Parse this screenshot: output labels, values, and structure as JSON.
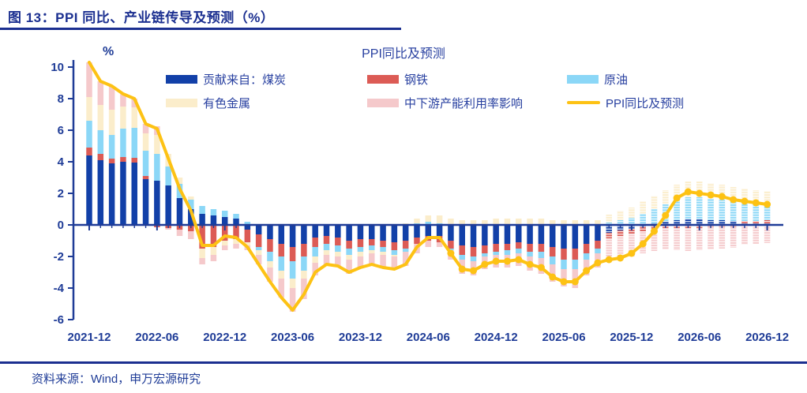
{
  "header": {
    "title": "图 13：PPI 同比、产业链传导及预测（%）"
  },
  "chart": {
    "title": "PPI同比及预测",
    "unit_label": "%"
  },
  "footer": {
    "source": "资料来源：Wind，申万宏源研究"
  },
  "colors": {
    "axis_text": "#1F3C97",
    "title_text": "#1B2F90",
    "divider": "#1B2F90",
    "line": "#FDC214",
    "coal": "#1240A8",
    "steel": "#DC5B55",
    "oil": "#8BD7F7",
    "nonferrous": "#FBEDCB",
    "capacity": "#F5C9CB"
  },
  "legend": {
    "items": [
      {
        "label": "贡献来自：煤炭",
        "color": "#1240A8",
        "kind": "bar"
      },
      {
        "label": "钢铁",
        "color": "#DC5B55",
        "kind": "bar"
      },
      {
        "label": "原油",
        "color": "#8BD7F7",
        "kind": "bar"
      },
      {
        "label": "有色金属",
        "color": "#FBEDCB",
        "kind": "bar"
      },
      {
        "label": "中下游产能利用率影响",
        "color": "#F5C9CB",
        "kind": "bar"
      },
      {
        "label": "PPI同比及预测",
        "color": "#FDC214",
        "kind": "line"
      }
    ]
  },
  "chart_data": {
    "type": "bar",
    "subtype": "stacked-bar-with-line",
    "title": "PPI同比及预测",
    "xlabel": "",
    "ylabel": "%",
    "ylim": [
      -6,
      10
    ],
    "yticks": [
      10,
      8,
      6,
      4,
      2,
      0,
      -2,
      -4,
      -6
    ],
    "grid": false,
    "legend_position": "top",
    "months_count": 61,
    "x_monthly_range": [
      "2021-12",
      "2026-12"
    ],
    "x_tick_labels": [
      "2021-12",
      "2022-06",
      "2022-12",
      "2023-06",
      "2023-12",
      "2024-06",
      "2024-12",
      "2025-06",
      "2025-12",
      "2026-06",
      "2026-12"
    ],
    "x_tick_month_indices": [
      0,
      6,
      12,
      18,
      24,
      30,
      36,
      42,
      48,
      54,
      60
    ],
    "forecast_start_index": 46,
    "marker_start_index": 32,
    "bar_series": [
      {
        "name": "贡献来自：煤炭",
        "color": "#1240A8",
        "values": [
          4.4,
          4.1,
          3.9,
          4.0,
          3.95,
          2.9,
          2.8,
          2.5,
          1.7,
          1.0,
          0.7,
          0.6,
          0.5,
          0.4,
          -0.3,
          -0.6,
          -0.9,
          -1.2,
          -1.4,
          -1.2,
          -0.8,
          -0.7,
          -0.8,
          -1.0,
          -0.9,
          -0.9,
          -1.0,
          -1.1,
          -1.0,
          -0.8,
          -0.7,
          -0.7,
          -1.0,
          -1.3,
          -1.4,
          -1.3,
          -1.2,
          -1.2,
          -1.1,
          -1.2,
          -1.2,
          -1.4,
          -1.5,
          -1.5,
          -1.2,
          -1.0,
          -0.5,
          -0.35,
          -0.25,
          -0.1,
          0.1,
          0.2,
          0.3,
          0.35,
          0.35,
          0.3,
          0.3,
          0.25,
          0.1,
          0.1,
          0.1
        ]
      },
      {
        "name": "钢铁",
        "color": "#DC5B55",
        "values": [
          0.5,
          0.4,
          0.3,
          0.3,
          0.3,
          0.2,
          -0.15,
          -0.2,
          -0.3,
          -0.4,
          -1.5,
          -1.4,
          -1.0,
          -0.9,
          -0.8,
          -0.8,
          -0.8,
          -0.8,
          -0.9,
          -0.8,
          -0.6,
          -0.5,
          -0.5,
          -0.5,
          -0.5,
          -0.4,
          -0.4,
          -0.5,
          -0.5,
          -0.4,
          -0.3,
          -0.4,
          -0.5,
          -0.6,
          -0.6,
          -0.5,
          -0.5,
          -0.4,
          -0.4,
          -0.5,
          -0.5,
          -0.6,
          -0.7,
          -0.7,
          -0.6,
          -0.5,
          -0.35,
          -0.35,
          -0.3,
          -0.3,
          -0.25,
          -0.2,
          -0.2,
          -0.2,
          -0.2,
          -0.15,
          -0.15,
          -0.15,
          0.15,
          0.15,
          0.2
        ]
      },
      {
        "name": "原油",
        "color": "#8BD7F7",
        "values": [
          1.7,
          1.5,
          1.5,
          1.8,
          1.9,
          1.6,
          1.7,
          1.2,
          0.9,
          0.6,
          0.5,
          0.4,
          0.4,
          0.3,
          0.2,
          -0.2,
          -0.6,
          -0.9,
          -1.1,
          -0.9,
          -0.6,
          -0.4,
          -0.4,
          -0.4,
          -0.3,
          -0.3,
          -0.3,
          -0.3,
          -0.2,
          0.1,
          0.2,
          0.1,
          -0.1,
          -0.3,
          -0.3,
          -0.2,
          -0.2,
          -0.3,
          -0.3,
          -0.3,
          -0.4,
          -0.5,
          -0.6,
          -0.6,
          -0.4,
          -0.3,
          0.15,
          0.3,
          0.45,
          0.7,
          0.9,
          1.1,
          1.3,
          1.4,
          1.4,
          1.35,
          1.3,
          1.25,
          1.15,
          1.1,
          1.0
        ]
      },
      {
        "name": "有色金属",
        "color": "#FBEDCB",
        "values": [
          1.5,
          1.6,
          1.6,
          1.4,
          1.3,
          1.1,
          1.2,
          0.8,
          0.4,
          0.2,
          -0.6,
          -0.5,
          -0.3,
          -0.3,
          -0.2,
          -0.3,
          -0.4,
          -0.5,
          -0.6,
          -0.5,
          -0.4,
          -0.3,
          -0.3,
          -0.3,
          -0.3,
          -0.2,
          -0.2,
          -0.1,
          0.1,
          0.3,
          0.4,
          0.5,
          0.4,
          0.3,
          0.3,
          0.3,
          0.4,
          0.4,
          0.4,
          0.4,
          0.4,
          0.3,
          0.3,
          0.3,
          0.3,
          0.3,
          0.5,
          0.6,
          0.65,
          0.8,
          0.85,
          0.9,
          0.95,
          1.0,
          1.0,
          1.0,
          0.95,
          0.9,
          0.9,
          0.85,
          0.85
        ]
      },
      {
        "name": "中下游产能利用率影响",
        "color": "#F5C9CB",
        "values": [
          2.2,
          1.5,
          1.5,
          0.8,
          0.55,
          0.6,
          0.55,
          -0.1,
          -0.4,
          -0.5,
          -0.4,
          -0.4,
          -0.3,
          -0.3,
          -0.3,
          -0.6,
          -0.9,
          -1.2,
          -1.5,
          -1.3,
          -0.8,
          -0.7,
          -0.6,
          -0.9,
          -0.7,
          -0.7,
          -0.8,
          -0.8,
          -0.9,
          -0.6,
          -0.4,
          -0.3,
          -0.6,
          -0.9,
          -0.9,
          -0.8,
          -0.8,
          -0.8,
          -0.8,
          -0.9,
          -1.0,
          -1.1,
          -1.1,
          -1.2,
          -1.0,
          -0.9,
          -1.5,
          -1.5,
          -1.45,
          -1.4,
          -1.4,
          -1.35,
          -1.4,
          -1.45,
          -1.4,
          -1.4,
          -1.35,
          -1.3,
          -1.25,
          -1.2,
          -1.15
        ]
      }
    ],
    "line_series": {
      "name": "PPI同比及预测",
      "color": "#FDC214",
      "values": [
        10.3,
        9.1,
        8.8,
        8.3,
        8.0,
        6.4,
        6.1,
        4.2,
        2.3,
        0.9,
        -1.3,
        -1.3,
        -0.7,
        -0.8,
        -1.4,
        -2.5,
        -3.6,
        -4.6,
        -5.4,
        -4.4,
        -3.0,
        -2.5,
        -2.6,
        -3.0,
        -2.7,
        -2.5,
        -2.7,
        -2.8,
        -2.5,
        -1.4,
        -0.8,
        -0.8,
        -1.8,
        -2.8,
        -2.9,
        -2.5,
        -2.3,
        -2.3,
        -2.2,
        -2.5,
        -2.7,
        -3.3,
        -3.6,
        -3.6,
        -2.9,
        -2.4,
        -2.2,
        -2.1,
        -1.8,
        -1.2,
        -0.4,
        0.6,
        1.7,
        2.1,
        2.0,
        1.9,
        1.8,
        1.6,
        1.5,
        1.4,
        1.3
      ]
    }
  }
}
